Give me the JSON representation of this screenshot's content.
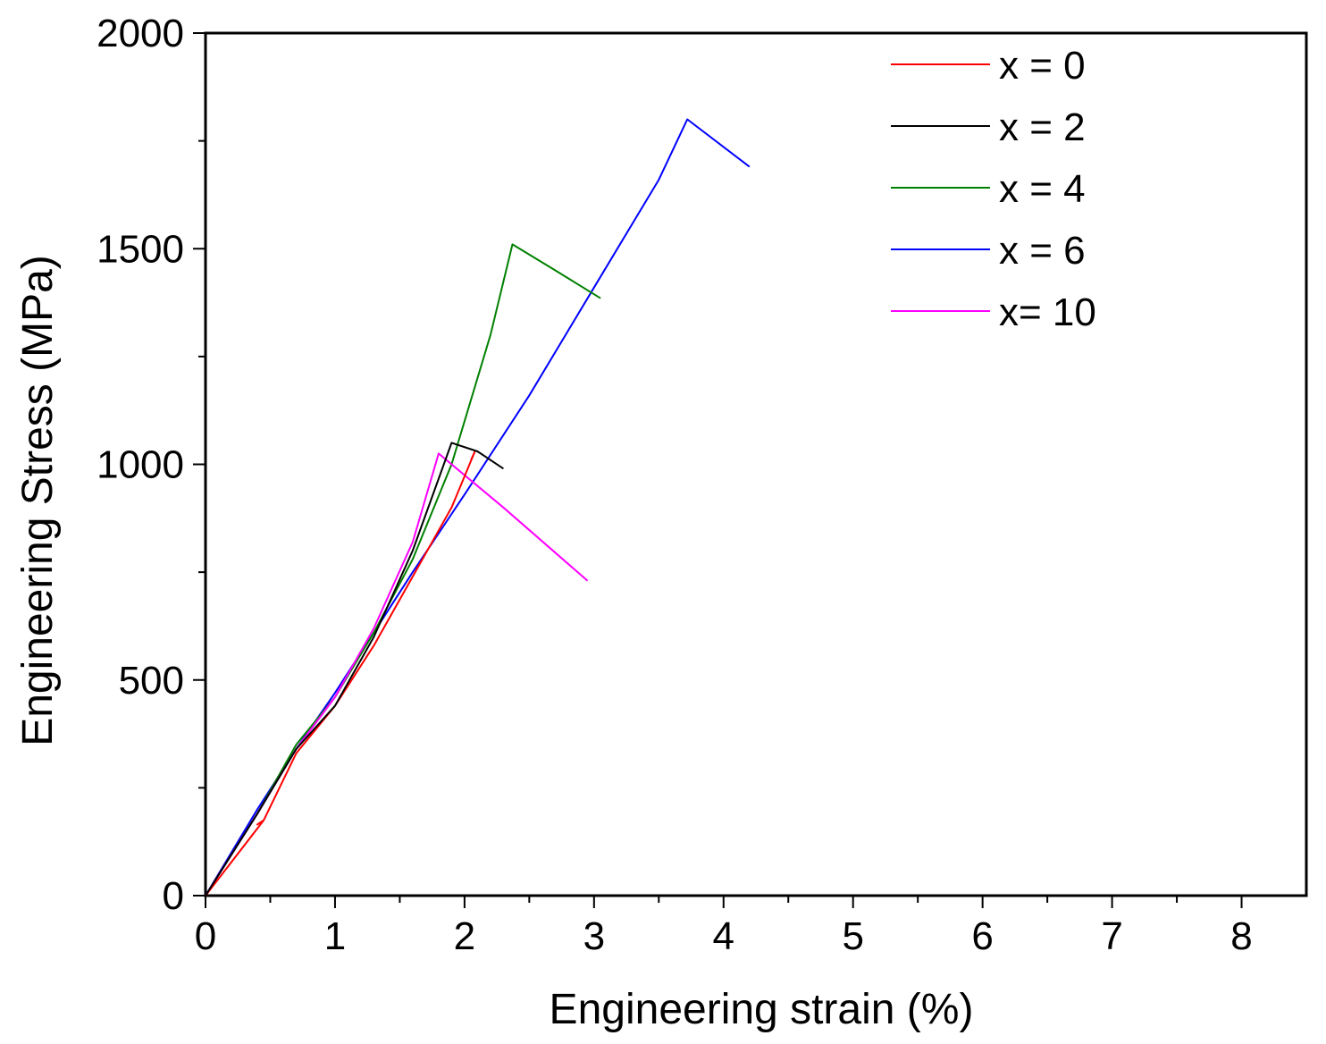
{
  "chart_data": {
    "type": "line",
    "title": "",
    "xlabel": "Engineering strain (%)",
    "ylabel": "Engineering Stress (MPa)",
    "xlim": [
      0,
      8.5
    ],
    "ylim": [
      0,
      2000
    ],
    "x_ticks": [
      0,
      1,
      2,
      3,
      4,
      5,
      6,
      7,
      8
    ],
    "y_ticks": [
      0,
      500,
      1000,
      1500,
      2000
    ],
    "x_tick_labels": [
      "0",
      "1",
      "2",
      "3",
      "4",
      "5",
      "6",
      "7",
      "8"
    ],
    "y_tick_labels": [
      "0",
      "500",
      "1000",
      "1500",
      "2000"
    ],
    "grid": false,
    "legend_position": "top-right",
    "series": [
      {
        "name": "x = 0",
        "color": "#ff0000",
        "points": [
          [
            0,
            0
          ],
          [
            0.45,
            175
          ],
          [
            0.4,
            165
          ],
          [
            0.45,
            175
          ],
          [
            0.7,
            330
          ],
          [
            1.0,
            440
          ],
          [
            1.3,
            580
          ],
          [
            1.6,
            740
          ],
          [
            1.9,
            900
          ],
          [
            2.08,
            1030
          ],
          [
            2.05,
            1010
          ]
        ]
      },
      {
        "name": "x = 2",
        "color": "#000000",
        "points": [
          [
            0,
            0
          ],
          [
            0.4,
            190
          ],
          [
            0.7,
            340
          ],
          [
            1.0,
            440
          ],
          [
            1.3,
            600
          ],
          [
            1.6,
            800
          ],
          [
            1.9,
            1050
          ],
          [
            2.1,
            1030
          ],
          [
            2.3,
            990
          ]
        ]
      },
      {
        "name": "x = 4",
        "color": "#008000",
        "points": [
          [
            0,
            0
          ],
          [
            0.4,
            190
          ],
          [
            0.7,
            350
          ],
          [
            1.0,
            460
          ],
          [
            1.3,
            610
          ],
          [
            1.6,
            780
          ],
          [
            1.9,
            1000
          ],
          [
            2.2,
            1300
          ],
          [
            2.37,
            1510
          ],
          [
            2.7,
            1450
          ],
          [
            3.05,
            1385
          ]
        ]
      },
      {
        "name": "x = 6",
        "color": "#0000ff",
        "points": [
          [
            0,
            0
          ],
          [
            0.4,
            200
          ],
          [
            0.7,
            340
          ],
          [
            1.0,
            470
          ],
          [
            1.3,
            610
          ],
          [
            1.6,
            750
          ],
          [
            2.0,
            930
          ],
          [
            2.5,
            1160
          ],
          [
            3.0,
            1410
          ],
          [
            3.5,
            1660
          ],
          [
            3.72,
            1800
          ],
          [
            4.2,
            1690
          ]
        ]
      },
      {
        "name": "x= 10",
        "color": "#ff00ff",
        "points": [
          [
            0,
            0
          ],
          [
            0.4,
            190
          ],
          [
            0.7,
            340
          ],
          [
            1.0,
            460
          ],
          [
            1.3,
            620
          ],
          [
            1.6,
            820
          ],
          [
            1.8,
            1025
          ],
          [
            2.3,
            900
          ],
          [
            2.95,
            730
          ]
        ]
      }
    ]
  }
}
